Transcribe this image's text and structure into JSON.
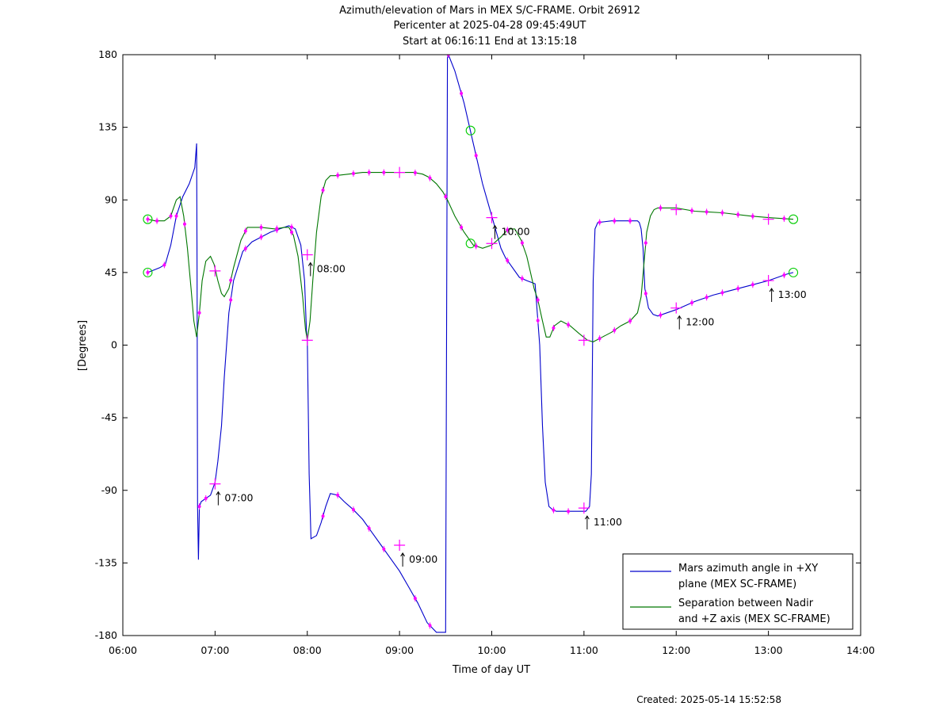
{
  "chart_data": {
    "type": "line",
    "title": [
      "Azimuth/elevation of Mars in MEX S/C-FRAME.  Orbit 26912",
      "Pericenter at 2025-04-28 09:45:49UT",
      "Start at 06:16:11 End at 13:15:18"
    ],
    "xlabel": "Time of day UT",
    "ylabel": "[Degrees]",
    "xlim": [
      6.0,
      14.0
    ],
    "ylim": [
      -180,
      180
    ],
    "x_ticks": [
      6,
      7,
      8,
      9,
      10,
      11,
      12,
      13,
      14
    ],
    "x_tick_labels": [
      "06:00",
      "07:00",
      "08:00",
      "09:00",
      "10:00",
      "11:00",
      "12:00",
      "13:00",
      "14:00"
    ],
    "y_ticks": [
      -180,
      -135,
      -90,
      -45,
      0,
      45,
      90,
      135,
      180
    ],
    "y_tick_labels": [
      "-180",
      "-135",
      "-90",
      "-45",
      "0",
      "45",
      "90",
      "135",
      "180"
    ],
    "grid": false,
    "legend_position": "bottom-right",
    "series": [
      {
        "name": "Mars azimuth angle in +XY\nplane (MEX SC-FRAME)",
        "color": "#0000cc",
        "x": [
          6.27,
          6.4,
          6.46,
          6.52,
          6.58,
          6.65,
          6.72,
          6.78,
          6.8,
          6.805,
          6.81,
          6.82,
          6.83,
          6.85,
          6.9,
          6.95,
          7.0,
          7.03,
          7.07,
          7.1,
          7.15,
          7.2,
          7.3,
          7.4,
          7.5,
          7.6,
          7.7,
          7.8,
          7.87,
          7.93,
          7.97,
          7.99,
          8.0,
          8.02,
          8.04,
          8.1,
          8.15,
          8.2,
          8.25,
          8.33,
          8.4,
          8.5,
          8.6,
          8.7,
          8.8,
          8.9,
          9.0,
          9.1,
          9.2,
          9.3,
          9.4,
          9.5,
          9.52,
          9.53,
          9.6,
          9.7,
          9.8,
          9.9,
          10.0,
          10.1,
          10.15,
          10.2,
          10.3,
          10.38,
          10.47,
          10.52,
          10.55,
          10.58,
          10.62,
          10.66,
          10.7,
          10.75,
          10.85,
          10.95,
          11.02,
          11.06,
          11.08,
          11.1,
          11.12,
          11.15,
          11.3,
          11.45,
          11.58,
          11.6,
          11.62,
          11.64,
          11.66,
          11.7,
          11.75,
          11.8,
          12.0,
          12.2,
          12.4,
          12.6,
          12.8,
          13.0,
          13.2,
          13.27
        ],
        "y": [
          45,
          48,
          50,
          62,
          80,
          92,
          100,
          110,
          125,
          40,
          -100,
          -133,
          -100,
          -97,
          -95,
          -93,
          -85,
          -72,
          -50,
          -20,
          20,
          40,
          58,
          64,
          67,
          70,
          72,
          74,
          72,
          62,
          40,
          10,
          2,
          -80,
          -120,
          -118,
          -110,
          -100,
          -92,
          -93,
          -97,
          -102,
          -108,
          -116,
          -124,
          -132,
          -140,
          -150,
          -160,
          -172,
          -178,
          -178,
          178,
          180,
          170,
          150,
          125,
          100,
          80,
          60,
          54,
          50,
          42,
          40,
          38,
          0,
          -50,
          -85,
          -100,
          -102,
          -103,
          -103,
          -103,
          -103,
          -103,
          -100,
          -80,
          40,
          72,
          76,
          77,
          77,
          77,
          76,
          72,
          60,
          35,
          23,
          19,
          18,
          22,
          27,
          31,
          34,
          37,
          40,
          44,
          45
        ]
      },
      {
        "name": "Separation between Nadir\nand +Z axis (MEX SC-FRAME)",
        "color": "#007700",
        "x": [
          6.27,
          6.35,
          6.45,
          6.52,
          6.58,
          6.62,
          6.66,
          6.7,
          6.74,
          6.77,
          6.8,
          6.83,
          6.86,
          6.9,
          6.95,
          6.99,
          7.03,
          7.07,
          7.1,
          7.15,
          7.2,
          7.28,
          7.35,
          7.5,
          7.65,
          7.75,
          7.8,
          7.85,
          7.9,
          7.95,
          7.98,
          8.0,
          8.03,
          8.06,
          8.1,
          8.15,
          8.2,
          8.25,
          8.3,
          8.45,
          8.6,
          8.8,
          9.0,
          9.15,
          9.25,
          9.32,
          9.4,
          9.47,
          9.52,
          9.6,
          9.7,
          9.8,
          9.9,
          10.0,
          10.1,
          10.18,
          10.25,
          10.32,
          10.38,
          10.42,
          10.46,
          10.5,
          10.55,
          10.59,
          10.63,
          10.68,
          10.75,
          10.85,
          10.95,
          11.04,
          11.1,
          11.2,
          11.3,
          11.4,
          11.5,
          11.58,
          11.62,
          11.65,
          11.68,
          11.72,
          11.76,
          11.8,
          11.83,
          12.0,
          12.2,
          12.5,
          12.8,
          13.0,
          13.27
        ],
        "y": [
          78,
          77,
          77,
          80,
          90,
          92,
          80,
          60,
          35,
          15,
          5,
          20,
          40,
          52,
          55,
          50,
          40,
          32,
          30,
          35,
          48,
          65,
          73,
          73,
          72,
          73,
          73,
          68,
          55,
          30,
          10,
          3,
          15,
          40,
          70,
          92,
          102,
          105,
          105,
          106,
          107,
          107,
          107,
          107,
          106,
          104,
          100,
          95,
          90,
          80,
          70,
          62,
          60,
          62,
          67,
          72,
          72,
          65,
          55,
          45,
          35,
          28,
          15,
          5,
          5,
          12,
          15,
          12,
          7,
          3,
          2,
          5,
          8,
          12,
          15,
          20,
          30,
          50,
          70,
          80,
          84,
          85,
          85,
          85,
          83,
          82,
          80,
          79,
          78
        ]
      }
    ],
    "legend": [
      {
        "line1": "Mars azimuth angle in +XY",
        "line2": "plane (MEX SC-FRAME)",
        "color": "#0000cc"
      },
      {
        "line1": "Separation between Nadir",
        "line2": "and +Z axis (MEX SC-FRAME)",
        "color": "#007700"
      }
    ],
    "hour_crosses": [
      {
        "x": 7,
        "y": -86
      },
      {
        "x": 8,
        "y": 56
      },
      {
        "x": 9,
        "y": -124
      },
      {
        "x": 10,
        "y": 79
      },
      {
        "x": 11,
        "y": -101
      },
      {
        "x": 12,
        "y": 23
      },
      {
        "x": 13,
        "y": 40
      },
      {
        "x": 7,
        "y": 46
      },
      {
        "x": 8,
        "y": 3
      },
      {
        "x": 9,
        "y": 107
      },
      {
        "x": 10,
        "y": 63
      },
      {
        "x": 11,
        "y": 3
      },
      {
        "x": 12,
        "y": 84
      },
      {
        "x": 13,
        "y": 78
      }
    ],
    "hour_labels": [
      {
        "x": 7,
        "y": -86,
        "text": "07:00"
      },
      {
        "x": 8,
        "y": 56,
        "text": "08:00"
      },
      {
        "x": 9,
        "y": -124,
        "text": "09:00"
      },
      {
        "x": 10,
        "y": 79,
        "text": "10:00"
      },
      {
        "x": 11,
        "y": -101,
        "text": "11:00"
      },
      {
        "x": 12,
        "y": 23,
        "text": "12:00"
      },
      {
        "x": 13,
        "y": 40,
        "text": "13:00"
      }
    ],
    "circles": [
      {
        "x": 6.27,
        "y": 78
      },
      {
        "x": 6.27,
        "y": 45
      },
      {
        "x": 9.77,
        "y": 133
      },
      {
        "x": 9.77,
        "y": 63
      },
      {
        "x": 13.27,
        "y": 78
      },
      {
        "x": 13.27,
        "y": 45
      }
    ],
    "dot_times_blue": [
      6.27,
      6.45,
      6.58,
      6.83,
      6.9,
      7.17,
      7.33,
      7.5,
      7.67,
      7.83,
      8.17,
      8.33,
      8.5,
      8.67,
      8.83,
      9.17,
      9.33,
      9.53,
      9.67,
      9.83,
      10.17,
      10.33,
      10.5,
      10.67,
      10.83,
      11.17,
      11.33,
      11.5,
      11.67,
      11.83,
      12.17,
      12.33,
      12.5,
      12.67,
      12.83,
      13.17
    ],
    "dot_times_green": [
      6.27,
      6.37,
      6.52,
      6.67,
      6.83,
      7.17,
      7.33,
      7.5,
      7.67,
      7.83,
      8.17,
      8.33,
      8.5,
      8.67,
      8.83,
      9.17,
      9.33,
      9.5,
      9.67,
      9.83,
      10.17,
      10.33,
      10.5,
      10.67,
      10.83,
      11.17,
      11.33,
      11.5,
      11.67,
      11.83,
      12.17,
      12.33,
      12.5,
      12.67,
      12.83,
      13.17
    ],
    "dot_color": "#ff00ff",
    "circle_color": "#00cc00"
  },
  "footer": "Created: 2025-05-14 15:52:58"
}
